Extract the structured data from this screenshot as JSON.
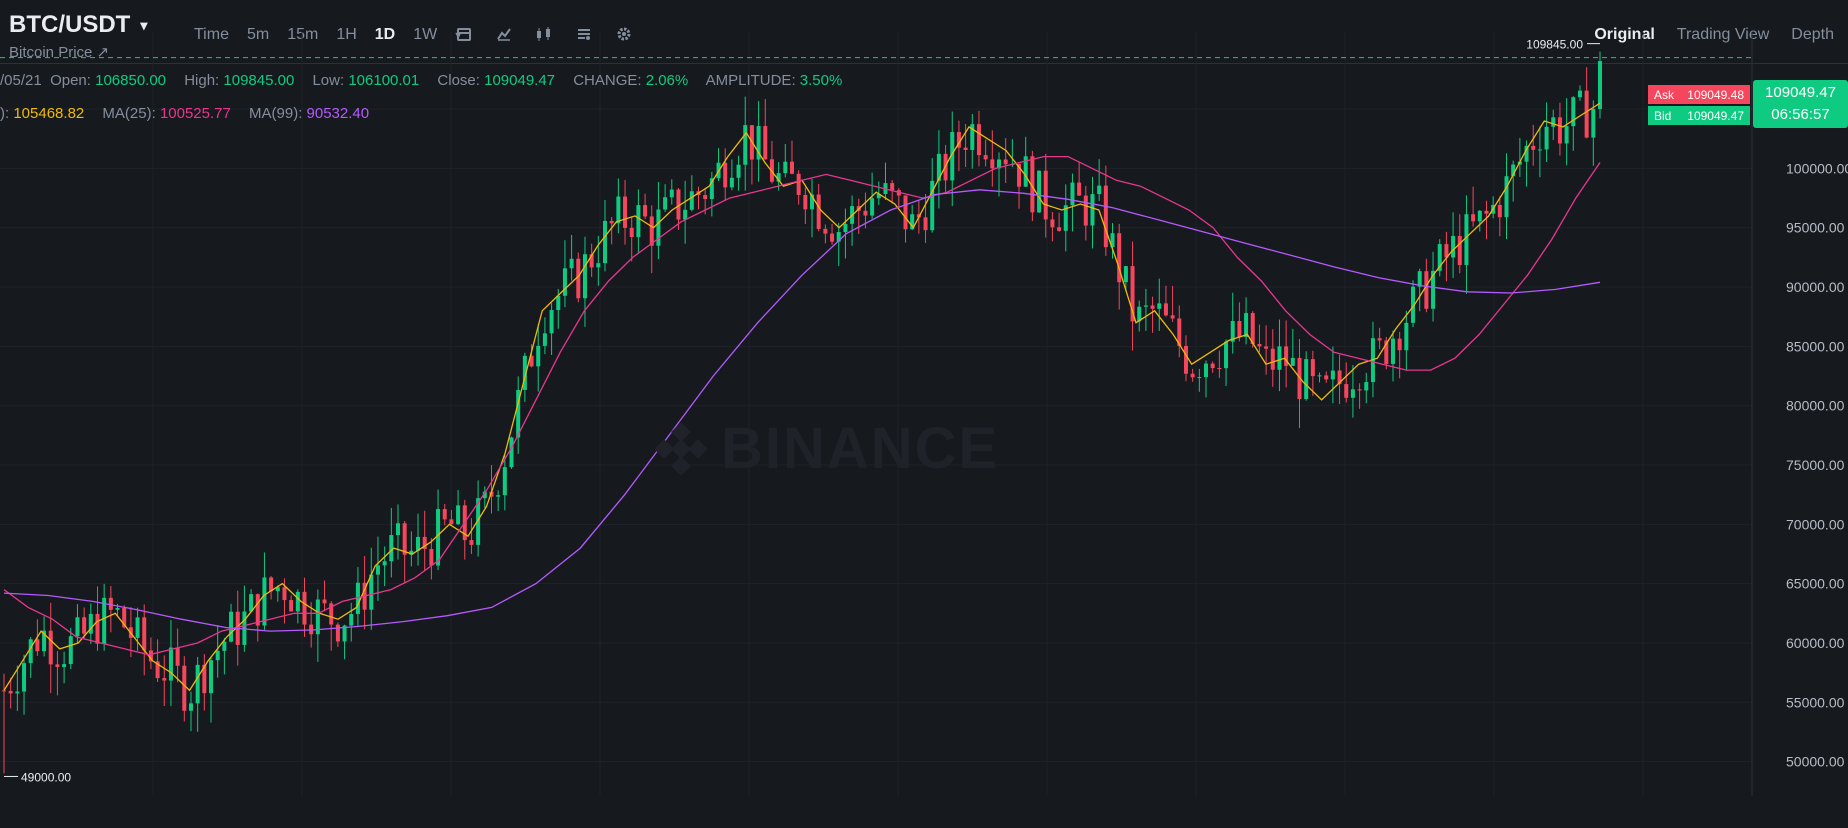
{
  "header": {
    "pair": "BTC/USDT",
    "subtitle": "Bitcoin Price ↗",
    "intervals": [
      "Time",
      "5m",
      "15m",
      "1H",
      "1D",
      "1W"
    ],
    "active_interval": "1D",
    "views": [
      "Original",
      "Trading View",
      "Depth"
    ],
    "active_view": "Original"
  },
  "legend": {
    "date": "/05/21",
    "open_label": "Open:",
    "open": "106850.00",
    "high_label": "High:",
    "high": "109845.00",
    "low_label": "Low:",
    "low": "106100.01",
    "close_label": "Close:",
    "close": "109049.47",
    "change_label": "CHANGE:",
    "change": "2.06%",
    "amplitude_label": "AMPLITUDE:",
    "amplitude": "3.50%",
    "ma7_prefix": "):",
    "ma7": "105468.82",
    "ma25_label": "MA(25):",
    "ma25": "100525.77",
    "ma99_label": "MA(99):",
    "ma99": "90532.40"
  },
  "orderbook": {
    "ask_label": "Ask",
    "ask": "109049.48",
    "bid_label": "Bid",
    "bid": "109049.47",
    "last_price": "109049.47",
    "countdown": "06:56:57"
  },
  "markers": {
    "high_marker": "109845.00",
    "low_marker": "49000.00"
  },
  "watermark": "BINANCE",
  "colors": {
    "up": "#0ecb81",
    "down": "#f6465d",
    "ma7": "#f0b90b",
    "ma25": "#e8368f",
    "ma99": "#b659ff",
    "background": "#161a1e"
  },
  "chart_data": {
    "type": "candlestick",
    "yticks": [
      50000,
      55000,
      60000,
      65000,
      70000,
      75000,
      80000,
      85000,
      90000,
      95000,
      100000,
      105000
    ],
    "ylim": [
      47100,
      111500
    ],
    "series": [
      {
        "name": "MA(7)",
        "values": [
          56000,
          58500,
          61000,
          59500,
          60000,
          61800,
          62500,
          60500,
          58500,
          57500,
          56000,
          58500,
          60500,
          62000,
          64000,
          65000,
          63500,
          62500,
          62000,
          63000,
          66500,
          68000,
          67500,
          68500,
          70000,
          69000,
          71500,
          76000,
          82000,
          88000,
          89500,
          91000,
          93500,
          95500,
          96000,
          95000,
          96500,
          97500,
          98500,
          101000,
          103000,
          100500,
          98500,
          99000,
          96500,
          95000,
          96500,
          98000,
          97000,
          95000,
          98000,
          101000,
          103500,
          102500,
          101500,
          99500,
          97000,
          96500,
          97000,
          96500,
          92000,
          87000,
          88000,
          86000,
          83500,
          84500,
          85500,
          86000,
          83500,
          84000,
          82000,
          80500,
          82000,
          83500,
          84000,
          86500,
          88500,
          91000,
          93000,
          94500,
          96000,
          98500,
          101500,
          104000,
          103500,
          104500,
          105500
        ]
      },
      {
        "name": "MA(25)",
        "values": [
          64500,
          63000,
          62000,
          60500,
          60000,
          59500,
          59000,
          59500,
          60000,
          61000,
          61500,
          62000,
          62500,
          62500,
          63500,
          64000,
          64500,
          65500,
          67000,
          70000,
          73000,
          76500,
          80500,
          84500,
          88000,
          90500,
          92500,
          94000,
          95500,
          96500,
          97500,
          98000,
          98500,
          99000,
          99500,
          99000,
          98500,
          98000,
          97500,
          98000,
          99000,
          100000,
          100500,
          101000,
          101000,
          100000,
          99000,
          98500,
          97500,
          96500,
          95000,
          92500,
          90500,
          88000,
          86000,
          84500,
          84000,
          83500,
          83000,
          83000,
          84000,
          86000,
          88500,
          91000,
          94000,
          97500,
          100500
        ]
      },
      {
        "name": "MA(99)",
        "values": [
          64200,
          64000,
          63500,
          62800,
          62000,
          61300,
          61000,
          61100,
          61400,
          61800,
          62300,
          63000,
          65000,
          68000,
          72500,
          77500,
          82500,
          87000,
          91000,
          94500,
          96500,
          97800,
          98200,
          97900,
          97400,
          96700,
          95700,
          94700,
          93700,
          92700,
          91700,
          90800,
          90100,
          89600,
          89500,
          89800,
          90400
        ]
      }
    ],
    "last_close": 109049.47,
    "high": 109845.0,
    "low": 49000.0
  }
}
